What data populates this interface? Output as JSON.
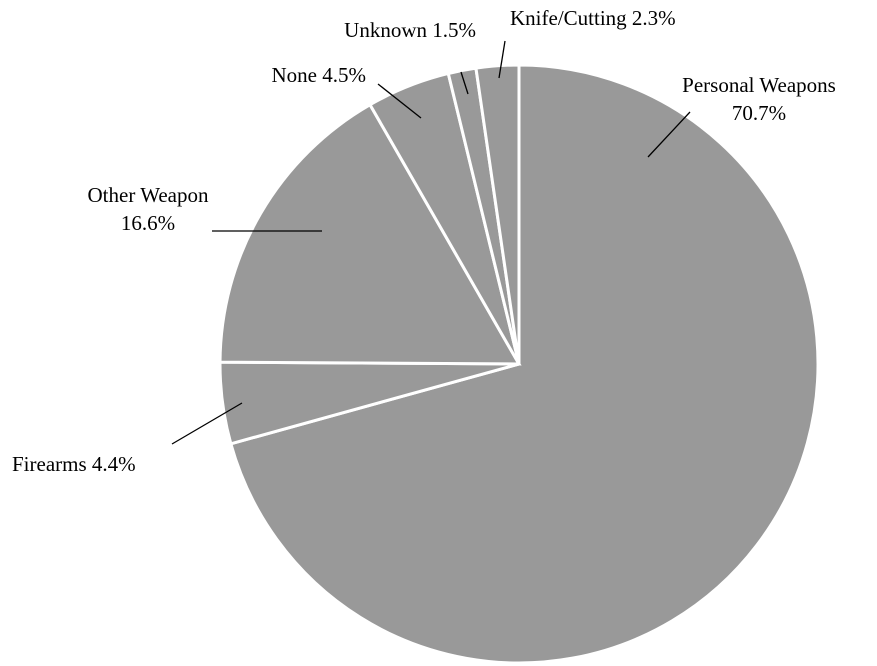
{
  "chart_data": {
    "type": "pie",
    "title": "",
    "slice_color": "#999999",
    "slices": [
      {
        "label": "Personal Weapons",
        "value": 70.7,
        "text_lines": [
          "Personal Weapons",
          "70.7%"
        ]
      },
      {
        "label": "Firearms",
        "value": 4.4,
        "text_lines": [
          "Firearms 4.4%"
        ]
      },
      {
        "label": "Other Weapon",
        "value": 16.6,
        "text_lines": [
          "Other Weapon",
          "16.6%"
        ]
      },
      {
        "label": "None",
        "value": 4.5,
        "text_lines": [
          "None 4.5%"
        ]
      },
      {
        "label": "Unknown",
        "value": 1.5,
        "text_lines": [
          "Unknown 1.5%"
        ]
      },
      {
        "label": "Knife/Cutting",
        "value": 2.3,
        "text_lines": [
          "Knife/Cutting 2.3%"
        ]
      }
    ]
  }
}
